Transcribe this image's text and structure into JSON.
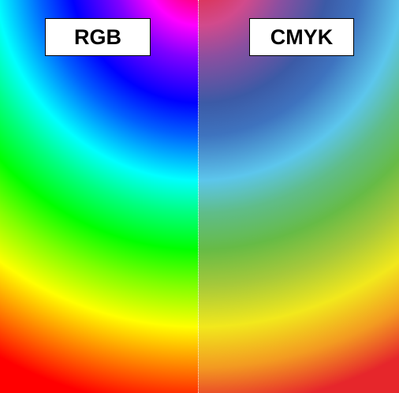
{
  "labels": {
    "left": "RGB",
    "right": "CMYK"
  },
  "colors": {
    "rgb_spectrum": [
      "#ff0000",
      "#ff00ff",
      "#0000ff",
      "#00ffff",
      "#00ff00",
      "#ffff00",
      "#ff0000"
    ],
    "cmyk_spectrum": [
      "#e4202a",
      "#d24a8c",
      "#3c5aa6",
      "#5cc6ec",
      "#66bb46",
      "#f2e81c",
      "#e6262b"
    ],
    "divider": "#ffffff",
    "label_background": "#ffffff",
    "label_border": "#000000"
  }
}
